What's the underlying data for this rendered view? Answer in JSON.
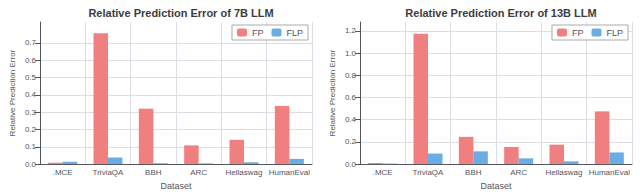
{
  "chart_data": [
    {
      "type": "bar",
      "title": "Relative Prediction Error of 7B LLM",
      "xlabel": "Dataset",
      "ylabel": "Relative Prediction Error",
      "categories": [
        ".MCE",
        "TriviaQA",
        "BBH",
        "ARC",
        "Hellaswag",
        "HumanEval"
      ],
      "series": [
        {
          "name": "FP",
          "color": "#f08080",
          "values": [
            0.008,
            0.755,
            0.32,
            0.108,
            0.14,
            0.335
          ]
        },
        {
          "name": "FLP",
          "color": "#6aade4",
          "values": [
            0.013,
            0.038,
            0.005,
            0.004,
            0.01,
            0.03
          ]
        }
      ],
      "ylim": [
        0,
        0.82
      ],
      "yticks": [
        {
          "value": 0,
          "label": "0.0"
        },
        0.1,
        0.2,
        0.3,
        0.4,
        0.5,
        0.6,
        0.7
      ],
      "grid": true,
      "legend": "upper right"
    },
    {
      "type": "bar",
      "title": "Relative Prediction Error of 13B LLM",
      "xlabel": "Dataset",
      "ylabel": "Relative Prediction Error",
      "categories": [
        ".MCE",
        "TriviaQA",
        "BBH",
        "ARC",
        "Hellaswag",
        "HumanEval"
      ],
      "series": [
        {
          "name": "FP",
          "color": "#f08080",
          "values": [
            0.01,
            1.175,
            0.245,
            0.155,
            0.175,
            0.475
          ]
        },
        {
          "name": "FLP",
          "color": "#6aade4",
          "values": [
            0.005,
            0.095,
            0.115,
            0.052,
            0.025,
            0.105
          ]
        }
      ],
      "ylim": [
        0,
        1.28
      ],
      "yticks": [
        {
          "value": 0,
          "label": "0.0"
        },
        0.2,
        0.4,
        0.6,
        0.8,
        {
          "value": 1,
          "label": "1.0"
        },
        1.2
      ],
      "grid": true,
      "legend": "upper right"
    }
  ]
}
